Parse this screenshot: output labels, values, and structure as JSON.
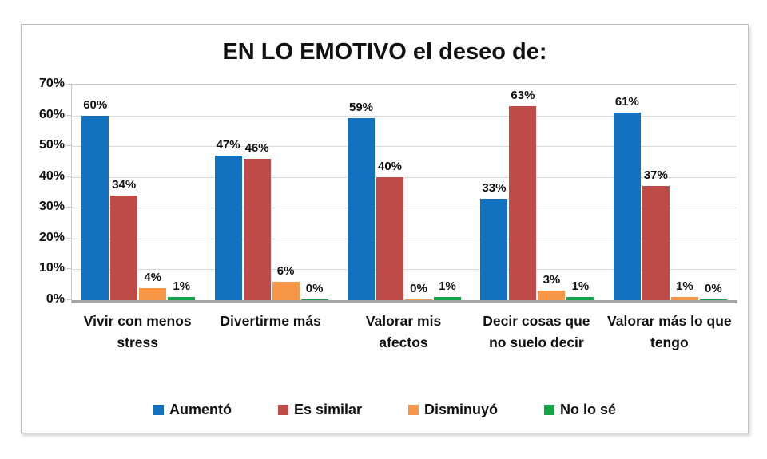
{
  "chart_data": {
    "type": "bar",
    "title": "EN LO EMOTIVO el deseo de:",
    "categories": [
      "Vivir con menos stress",
      "Divertirme más",
      "Valorar mis afectos",
      "Decir cosas que no suelo decir",
      "Valorar más lo que tengo"
    ],
    "series": [
      {
        "name": "Aumentó",
        "color": "#1272BF",
        "values": [
          60,
          47,
          59,
          33,
          61
        ]
      },
      {
        "name": "Es similar",
        "color": "#BF4B48",
        "values": [
          34,
          46,
          40,
          63,
          37
        ]
      },
      {
        "name": "Disminuyó",
        "color": "#F79646",
        "values": [
          4,
          6,
          0,
          3,
          1
        ]
      },
      {
        "name": "No lo sé",
        "color": "#16A44A",
        "values": [
          1,
          0,
          1,
          1,
          0
        ]
      }
    ],
    "y_tick_labels": [
      "70%",
      "60%",
      "50%",
      "40%",
      "30%",
      "20%",
      "10%",
      "0%"
    ],
    "ylim": [
      0,
      70
    ],
    "y_step": 10,
    "grid": true,
    "data_label_suffix": "%",
    "legend_position": "bottom",
    "xlabel": "",
    "ylabel": ""
  },
  "colors": {
    "grid_line": "#d9d9d9",
    "axis_line": "#a6a6a6",
    "plot_border": "#cccccc",
    "frame_border": "#bdbdbd",
    "text": "#111111",
    "background": "#ffffff"
  }
}
